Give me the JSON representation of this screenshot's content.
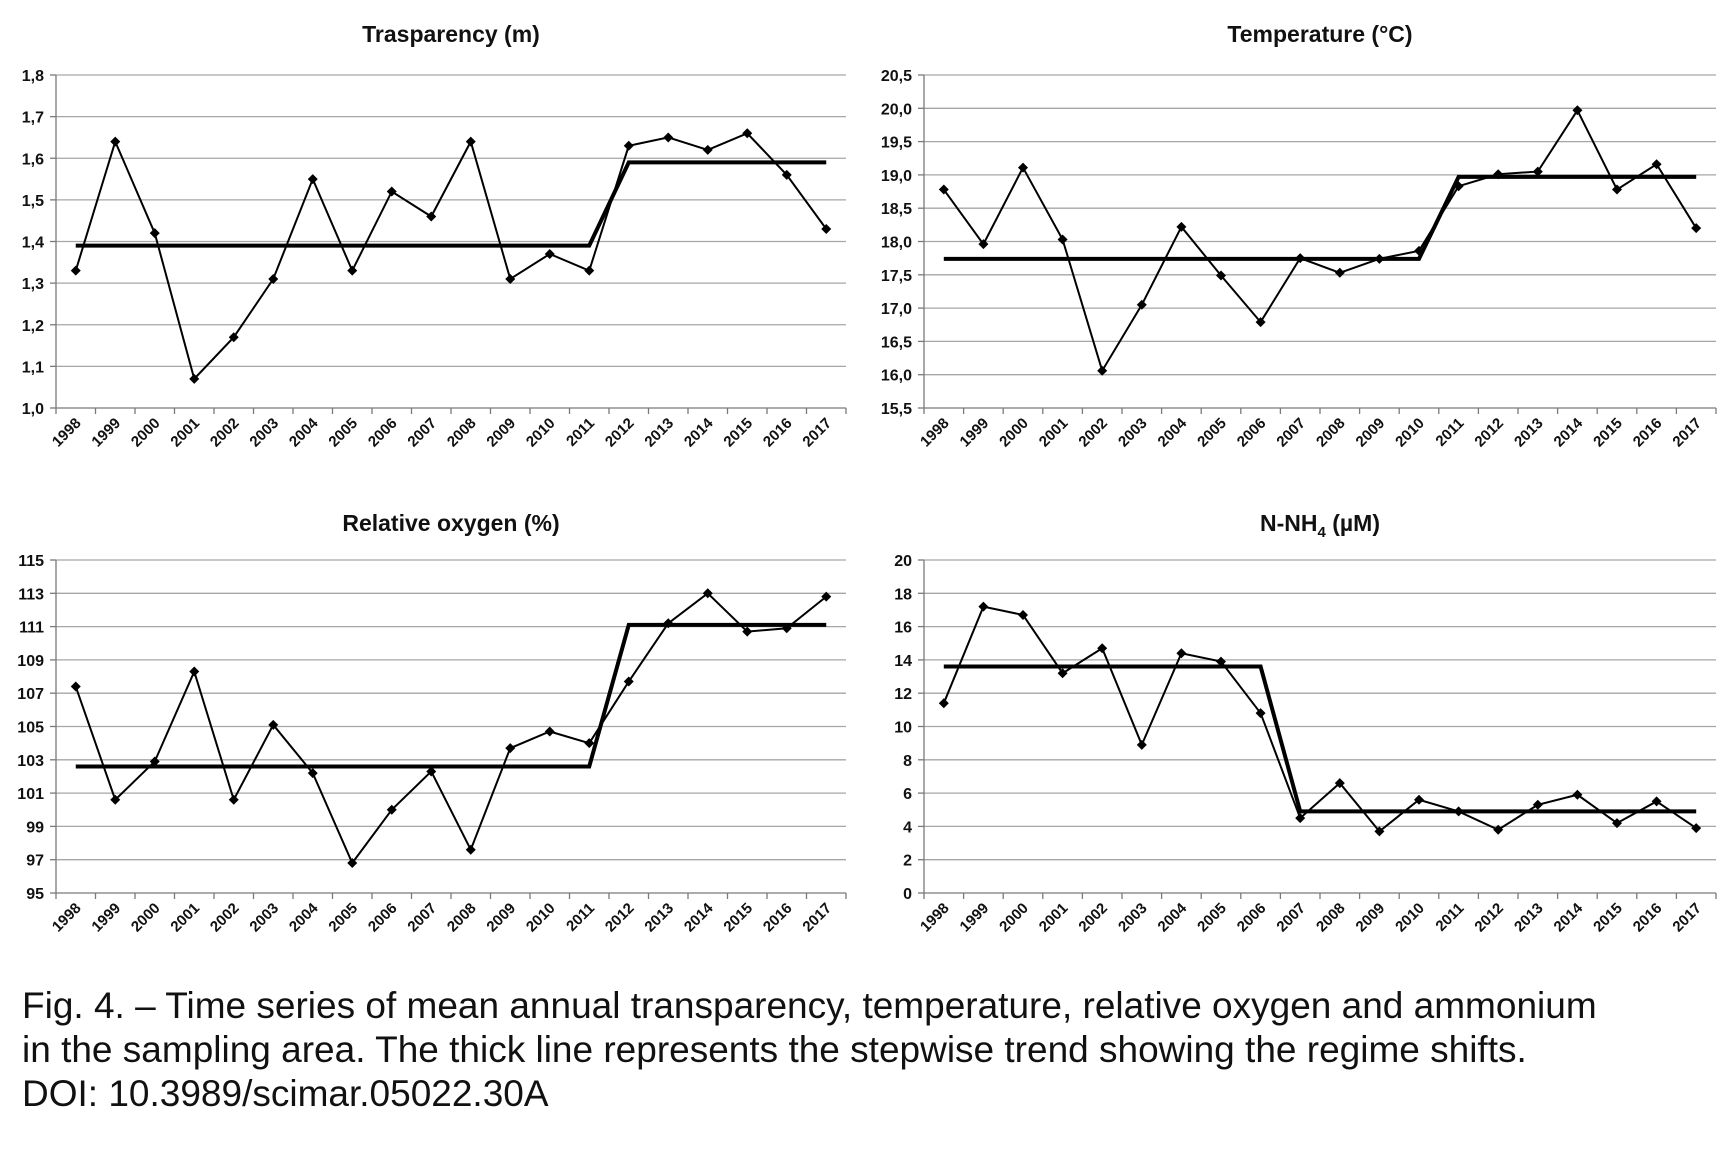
{
  "chart_data": [
    {
      "type": "line",
      "title": "Trasparency (m)",
      "categories": [
        "1998",
        "1999",
        "2000",
        "2001",
        "2002",
        "2003",
        "2004",
        "2005",
        "2006",
        "2007",
        "2008",
        "2009",
        "2010",
        "2011",
        "2012",
        "2013",
        "2014",
        "2015",
        "2016",
        "2017"
      ],
      "ylim": [
        1.0,
        1.8
      ],
      "yticks": [
        "1,0",
        "1,1",
        "1,2",
        "1,3",
        "1,4",
        "1,5",
        "1,6",
        "1,7",
        "1,8"
      ],
      "grid": true,
      "series": [
        {
          "role": "observed",
          "values": [
            1.33,
            1.64,
            1.42,
            1.07,
            1.17,
            1.31,
            1.55,
            1.33,
            1.52,
            1.46,
            1.64,
            1.31,
            1.37,
            1.33,
            1.63,
            1.65,
            1.62,
            1.66,
            1.56,
            1.43
          ]
        },
        {
          "role": "stepwise-trend",
          "values": [
            1.39,
            1.39,
            1.39,
            1.39,
            1.39,
            1.39,
            1.39,
            1.39,
            1.39,
            1.39,
            1.39,
            1.39,
            1.39,
            1.39,
            1.59,
            1.59,
            1.59,
            1.59,
            1.59,
            1.59
          ]
        }
      ]
    },
    {
      "type": "line",
      "title": "Temperature  (°C)",
      "categories": [
        "1998",
        "1999",
        "2000",
        "2001",
        "2002",
        "2003",
        "2004",
        "2005",
        "2006",
        "2007",
        "2008",
        "2009",
        "2010",
        "2011",
        "2012",
        "2013",
        "2014",
        "2015",
        "2016",
        "2017"
      ],
      "ylim": [
        15.5,
        20.5
      ],
      "yticks": [
        "15,5",
        "16,0",
        "16,5",
        "17,0",
        "17,5",
        "18,0",
        "18,5",
        "19,0",
        "19,5",
        "20,0",
        "20,5"
      ],
      "grid": true,
      "series": [
        {
          "role": "observed",
          "values": [
            18.78,
            17.96,
            19.11,
            18.03,
            16.06,
            17.05,
            18.22,
            17.49,
            16.79,
            17.75,
            17.53,
            17.74,
            17.86,
            18.83,
            19.01,
            19.05,
            19.97,
            18.78,
            19.16,
            18.2
          ]
        },
        {
          "role": "stepwise-trend",
          "values": [
            17.74,
            17.74,
            17.74,
            17.74,
            17.74,
            17.74,
            17.74,
            17.74,
            17.74,
            17.74,
            17.74,
            17.74,
            17.74,
            18.97,
            18.97,
            18.97,
            18.97,
            18.97,
            18.97,
            18.97
          ]
        }
      ]
    },
    {
      "type": "line",
      "title": "Relative oxygen (%)",
      "categories": [
        "1998",
        "1999",
        "2000",
        "2001",
        "2002",
        "2003",
        "2004",
        "2005",
        "2006",
        "2007",
        "2008",
        "2009",
        "2010",
        "2011",
        "2012",
        "2013",
        "2014",
        "2015",
        "2016",
        "2017"
      ],
      "ylim": [
        95,
        115
      ],
      "yticks": [
        "95",
        "97",
        "99",
        "101",
        "103",
        "105",
        "107",
        "109",
        "111",
        "113",
        "115"
      ],
      "grid": true,
      "series": [
        {
          "role": "observed",
          "values": [
            107.4,
            100.6,
            102.9,
            108.3,
            100.6,
            105.1,
            102.2,
            96.8,
            100.0,
            102.3,
            97.6,
            103.7,
            104.7,
            104.0,
            107.7,
            111.2,
            113.0,
            110.7,
            110.9,
            112.8
          ]
        },
        {
          "role": "stepwise-trend",
          "values": [
            102.6,
            102.6,
            102.6,
            102.6,
            102.6,
            102.6,
            102.6,
            102.6,
            102.6,
            102.6,
            102.6,
            102.6,
            102.6,
            102.6,
            111.1,
            111.1,
            111.1,
            111.1,
            111.1,
            111.1
          ]
        }
      ]
    },
    {
      "type": "line",
      "title": "N-NH4 (µM)",
      "title_parts": {
        "main": "N-NH",
        "sub": "4",
        "unit": " (µM)"
      },
      "categories": [
        "1998",
        "1999",
        "2000",
        "2001",
        "2002",
        "2003",
        "2004",
        "2005",
        "2006",
        "2007",
        "2008",
        "2009",
        "2010",
        "2011",
        "2012",
        "2013",
        "2014",
        "2015",
        "2016",
        "2017"
      ],
      "ylim": [
        0,
        20
      ],
      "yticks": [
        "0",
        "2",
        "4",
        "6",
        "8",
        "10",
        "12",
        "14",
        "16",
        "18",
        "20"
      ],
      "grid": true,
      "series": [
        {
          "role": "observed",
          "values": [
            11.4,
            17.2,
            16.7,
            13.2,
            14.7,
            8.9,
            14.4,
            13.9,
            10.8,
            4.5,
            6.6,
            3.7,
            5.6,
            4.9,
            3.8,
            5.3,
            5.9,
            4.2,
            5.5,
            3.9
          ]
        },
        {
          "role": "stepwise-trend",
          "values": [
            13.6,
            13.6,
            13.6,
            13.6,
            13.6,
            13.6,
            13.6,
            13.6,
            13.6,
            4.9,
            4.9,
            4.9,
            4.9,
            4.9,
            4.9,
            4.9,
            4.9,
            4.9,
            4.9,
            4.9
          ]
        }
      ]
    }
  ],
  "caption": {
    "line1": "Fig. 4. – Time series of mean annual transparency, temperature, relative oxygen and ammonium",
    "line2": "in the sampling area. The thick line represents the stepwise trend showing the regime shifts.",
    "line3": "DOI: 10.3989/scimar.05022.30A"
  }
}
